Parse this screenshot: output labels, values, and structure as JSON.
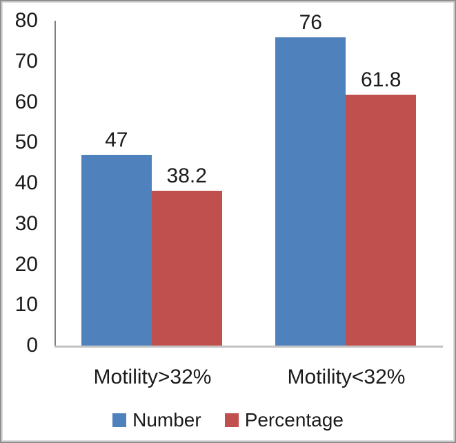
{
  "chart_data": {
    "type": "bar",
    "title": "",
    "xlabel": "",
    "ylabel": "",
    "categories": [
      "Motility>32%",
      "Motility<32%"
    ],
    "series": [
      {
        "name": "Number",
        "color": "#4F81BD",
        "values": [
          47,
          76
        ]
      },
      {
        "name": "Percentage",
        "color": "#C0504D",
        "values": [
          38.2,
          61.8
        ]
      }
    ],
    "data_labels": [
      [
        "47",
        "76"
      ],
      [
        "38.2",
        "61.8"
      ]
    ],
    "yticks": [
      0,
      10,
      20,
      30,
      40,
      50,
      60,
      70,
      80
    ],
    "ylim": [
      0,
      80
    ],
    "grid": false,
    "legend_position": "bottom",
    "axis_line_color": "#7f7f7f",
    "baseline_color": "#c2c2c2",
    "text_color": "#1b1b1b"
  }
}
